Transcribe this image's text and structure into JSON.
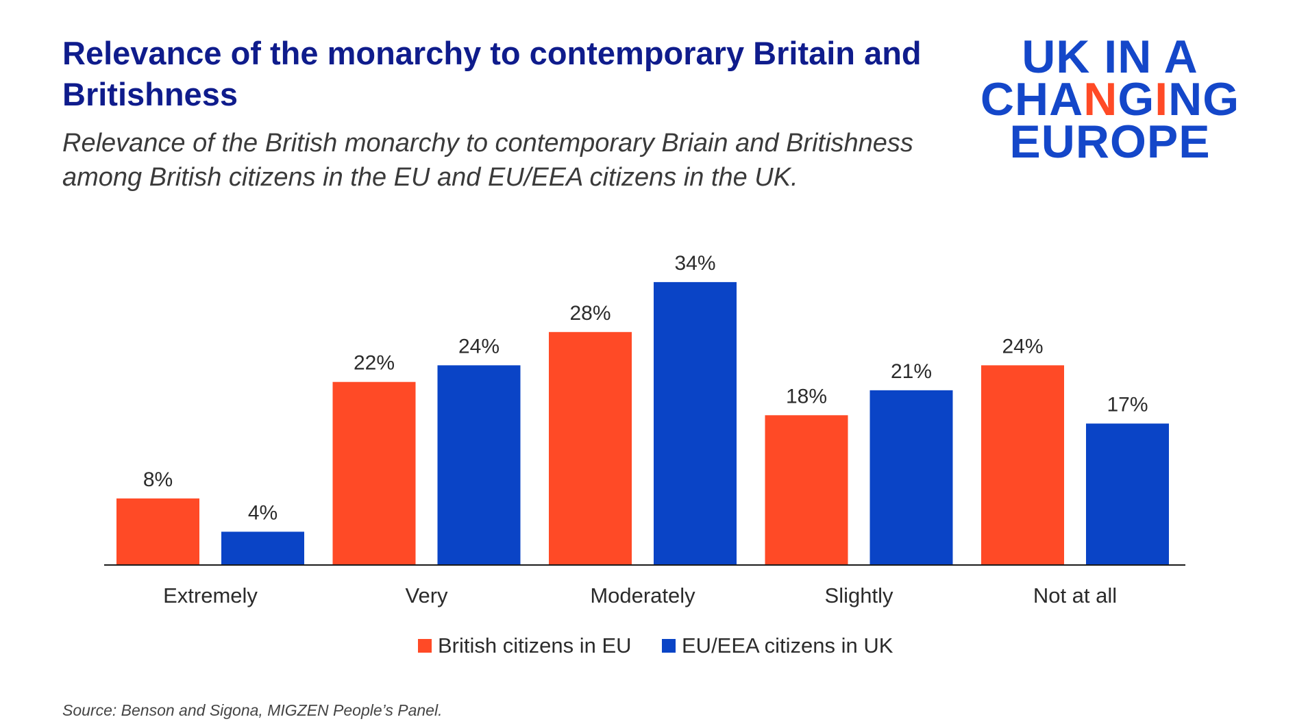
{
  "title": "Relevance of the monarchy to contemporary Britain and Britishness",
  "subtitle": "Relevance of the British monarchy to contemporary Briain and Britishness among British citizens in the EU and EU/EEA citizens in the UK.",
  "logo": {
    "line1": "UK IN A",
    "line2_part1": "CHA",
    "line2_part2": "N",
    "line2_part3": "G",
    "line2_part4": "I",
    "line2_part5": "NG",
    "line3": "EUROPE",
    "colors": {
      "primary": "#1447c9",
      "accent": "#ff4a26"
    }
  },
  "source": "Source: Benson and Sigona, MIGZEN People’s Panel.",
  "chart_data": {
    "type": "bar",
    "categories": [
      "Extremely",
      "Very",
      "Moderately",
      "Slightly",
      "Not at all"
    ],
    "series": [
      {
        "name": "British citizens in EU",
        "color": "#ff4a26",
        "values": [
          8,
          22,
          28,
          18,
          24
        ]
      },
      {
        "name": "EU/EEA citizens in UK",
        "color": "#0a44c6",
        "values": [
          4,
          24,
          34,
          21,
          17
        ]
      }
    ],
    "value_suffix": "%",
    "ylim": [
      0,
      34
    ],
    "grid": false,
    "legend_position": "bottom"
  }
}
